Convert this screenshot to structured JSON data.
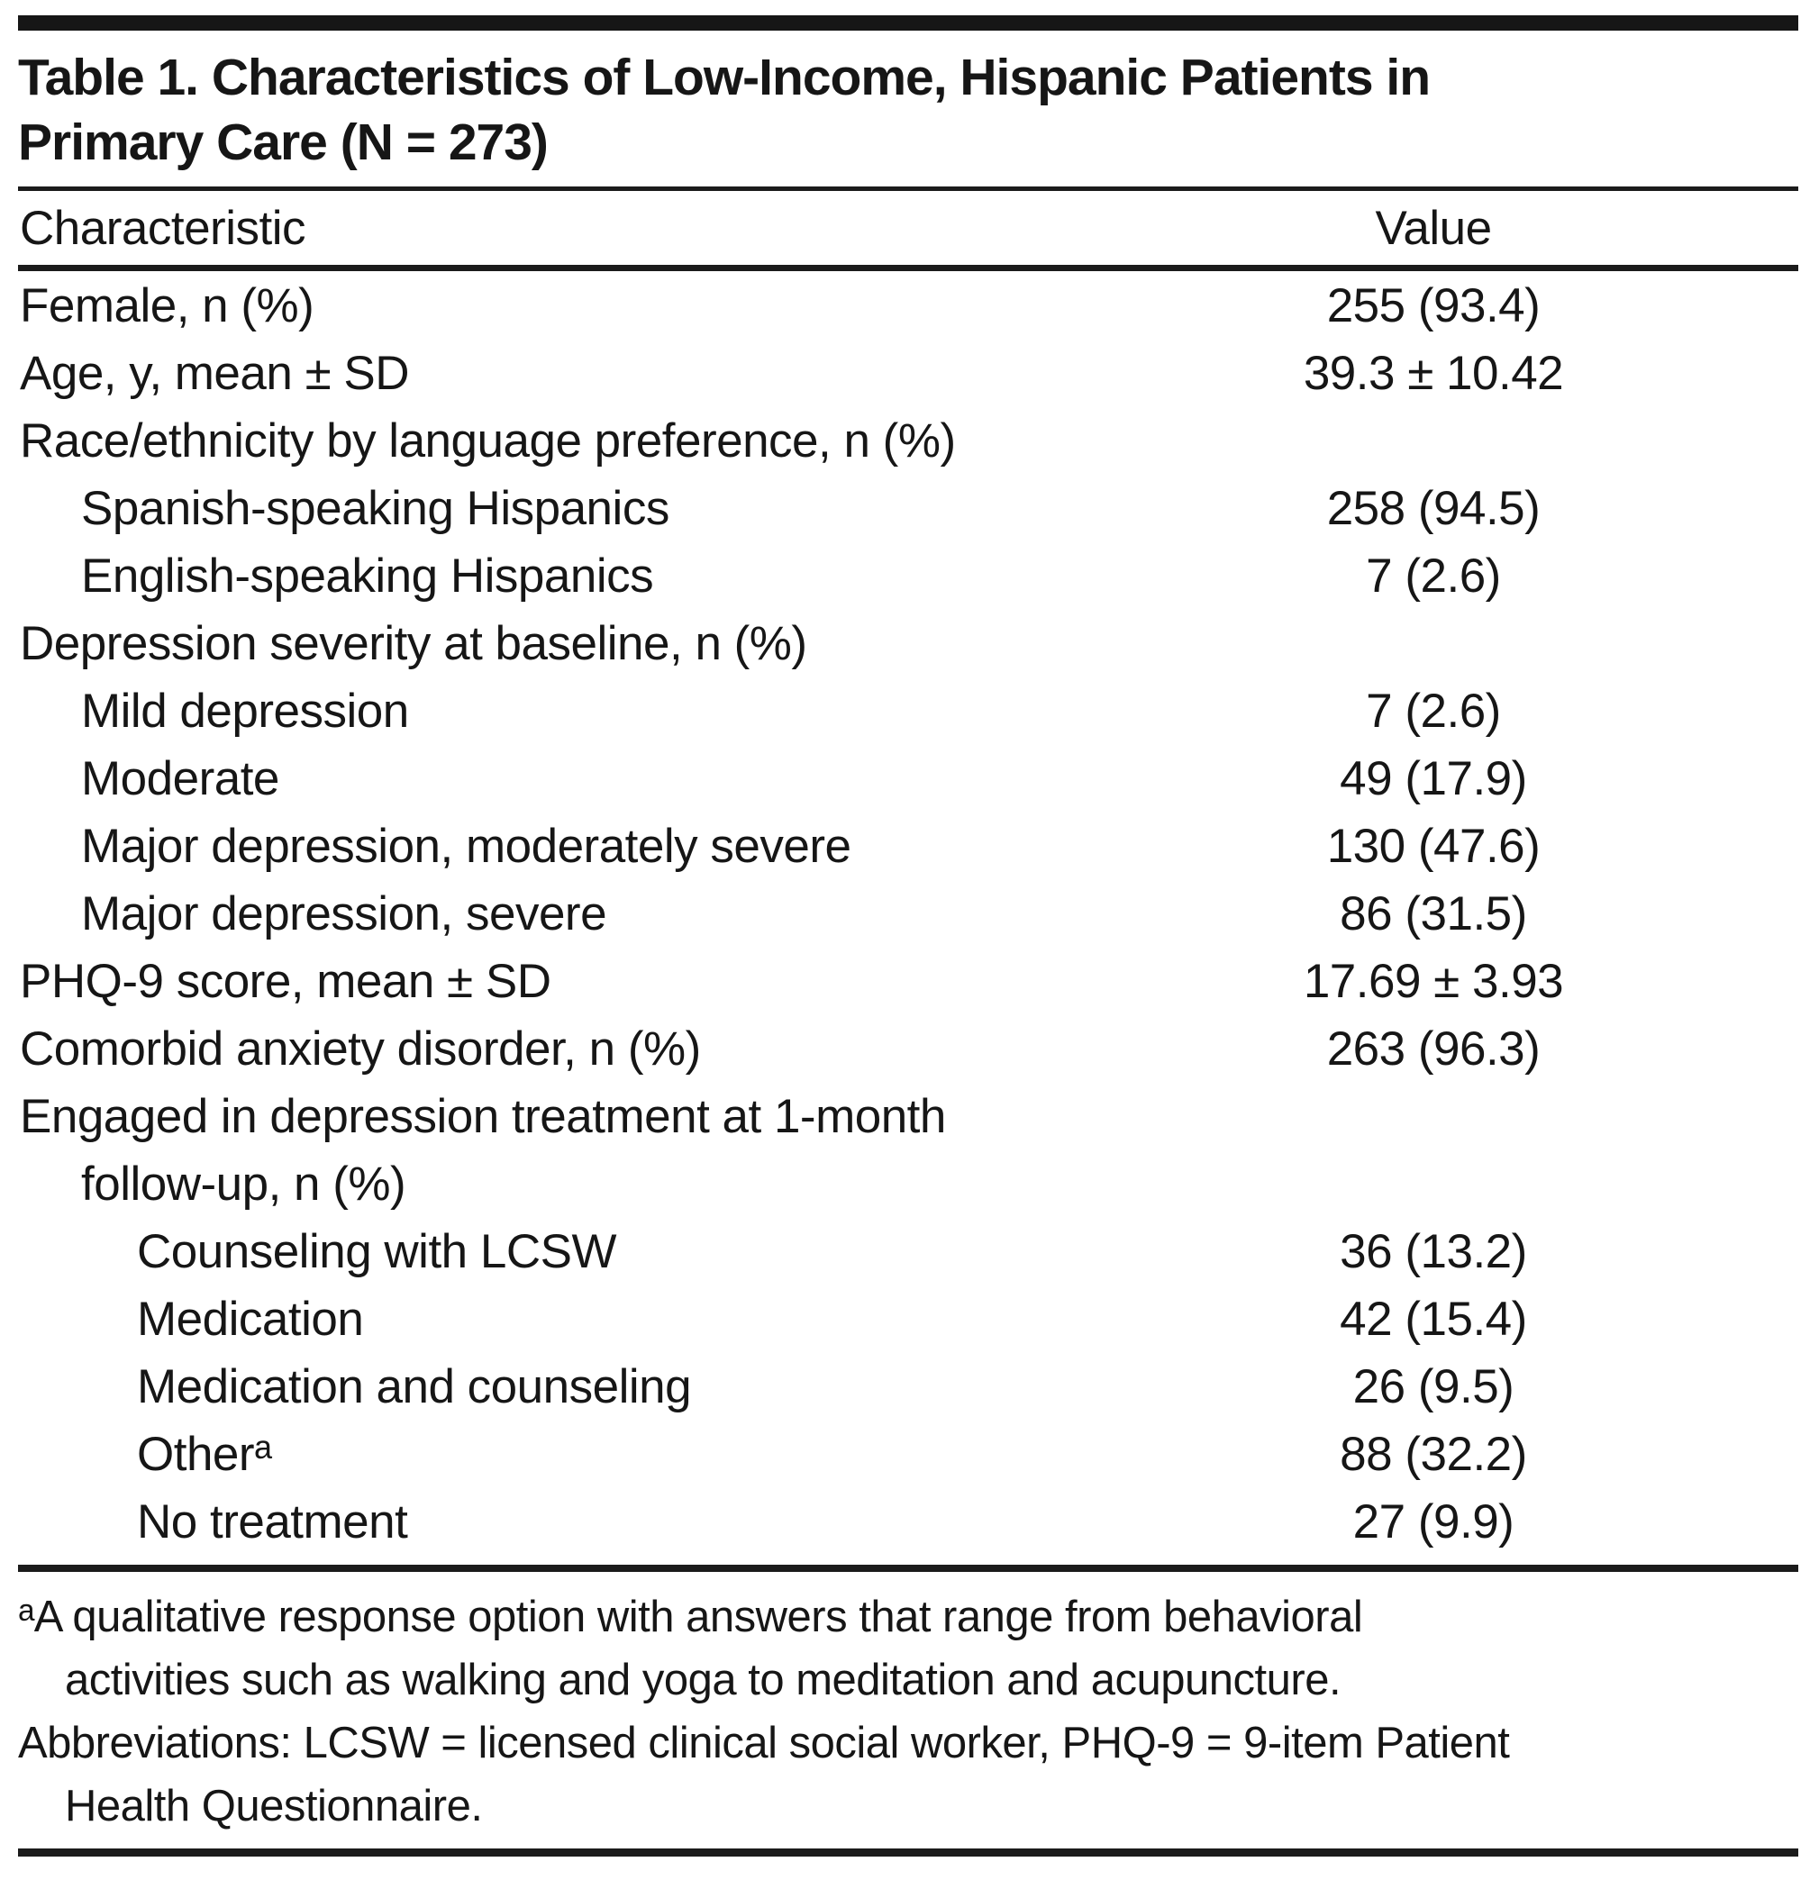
{
  "title": {
    "line1": "Table 1. Characteristics of Low-Income, Hispanic Patients in",
    "line2": "Primary Care (N = 273)"
  },
  "columns": {
    "characteristic": "Characteristic",
    "value": "Value"
  },
  "rows": [
    {
      "label": "Female, n (%)",
      "value": "255 (93.4)",
      "indent": 0
    },
    {
      "label": "Age, y, mean ± SD",
      "value": "39.3 ± 10.42",
      "indent": 0
    },
    {
      "label": "Race/ethnicity by language preference, n (%)",
      "value": "",
      "indent": 0
    },
    {
      "label": "Spanish-speaking Hispanics",
      "value": "258 (94.5)",
      "indent": 1
    },
    {
      "label": "English-speaking Hispanics",
      "value": "7 (2.6)",
      "indent": 1
    },
    {
      "label": "Depression severity at baseline, n (%)",
      "value": "",
      "indent": 0
    },
    {
      "label": "Mild depression",
      "value": "7 (2.6)",
      "indent": 1
    },
    {
      "label": "Moderate",
      "value": "49 (17.9)",
      "indent": 1
    },
    {
      "label": "Major depression, moderately severe",
      "value": "130 (47.6)",
      "indent": 1
    },
    {
      "label": "Major depression, severe",
      "value": "86 (31.5)",
      "indent": 1
    },
    {
      "label": "PHQ-9 score, mean ± SD",
      "value": "17.69 ± 3.93",
      "indent": 0
    },
    {
      "label": "Comorbid anxiety disorder, n (%)",
      "value": "263 (96.3)",
      "indent": 0
    },
    {
      "label": "Engaged in depression treatment at 1-month",
      "value": "",
      "indent": 0
    },
    {
      "label": "follow-up, n (%)",
      "value": "",
      "indent": 1
    },
    {
      "label": "Counseling with LCSW",
      "value": "36 (13.2)",
      "indent": 2
    },
    {
      "label": "Medication",
      "value": "42 (15.4)",
      "indent": 2
    },
    {
      "label": "Medication and counseling",
      "value": "26 (9.5)",
      "indent": 2
    },
    {
      "label": "Otherᵃ",
      "value": "88 (32.2)",
      "indent": 2
    },
    {
      "label": "No treatment",
      "value": "27 (9.9)",
      "indent": 2
    }
  ],
  "footnotes": {
    "a_line1": "ᵃA qualitative response option with answers that range from behavioral",
    "a_line2": "activities such as walking and yoga to meditation and acupuncture.",
    "abbrev_line1": "Abbreviations: LCSW = licensed clinical social worker, PHQ-9 = 9-item Patient",
    "abbrev_line2": "Health Questionnaire."
  }
}
